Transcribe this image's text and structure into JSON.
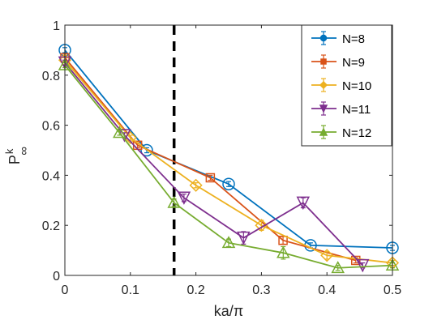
{
  "chart_data": {
    "type": "line",
    "title": "",
    "xlabel": "ka/π",
    "ylabel": "P",
    "ylabel_sup": "k",
    "ylabel_sub": "∞",
    "xlim": [
      0,
      0.5
    ],
    "ylim": [
      0,
      1
    ],
    "xticks": [
      0,
      0.1,
      0.2,
      0.3,
      0.4,
      0.5
    ],
    "xtick_labels": [
      "0",
      "0.1",
      "0.2",
      "0.3",
      "0.4",
      "0.5"
    ],
    "yticks": [
      0,
      0.2,
      0.4,
      0.6,
      0.8,
      1
    ],
    "ytick_labels": [
      "0",
      "0.2",
      "0.4",
      "0.6",
      "0.8",
      "1"
    ],
    "grid": false,
    "legend_position": "top-right",
    "vline": {
      "x": 0.1667,
      "style": "dashed",
      "color": "#000000"
    },
    "series": [
      {
        "name": "N=8",
        "color": "#0072BD",
        "marker": "circle",
        "x": [
          0,
          0.125,
          0.25,
          0.375,
          0.5
        ],
        "y": [
          0.9,
          0.5,
          0.365,
          0.12,
          0.11
        ],
        "err": [
          0.01,
          0.01,
          0.01,
          0.01,
          0.01
        ]
      },
      {
        "name": "N=9",
        "color": "#D95319",
        "marker": "square",
        "x": [
          0,
          0.111,
          0.222,
          0.333,
          0.444
        ],
        "y": [
          0.87,
          0.52,
          0.39,
          0.14,
          0.06
        ],
        "err": [
          0.01,
          0.01,
          0.01,
          0.015,
          0.01
        ]
      },
      {
        "name": "N=10",
        "color": "#EDB120",
        "marker": "diamond",
        "x": [
          0,
          0.1,
          0.2,
          0.3,
          0.4,
          0.5
        ],
        "y": [
          0.86,
          0.55,
          0.36,
          0.2,
          0.08,
          0.05
        ],
        "err": [
          0.01,
          0.01,
          0.01,
          0.02,
          0.015,
          0.01
        ]
      },
      {
        "name": "N=11",
        "color": "#7E2F8E",
        "marker": "triangle-down",
        "x": [
          0,
          0.0909,
          0.1818,
          0.2727,
          0.3636,
          0.4545
        ],
        "y": [
          0.85,
          0.56,
          0.31,
          0.15,
          0.29,
          0.04
        ],
        "err": [
          0.01,
          0.01,
          0.015,
          0.025,
          0.02,
          0.01
        ]
      },
      {
        "name": "N=12",
        "color": "#77AC30",
        "marker": "triangle-up",
        "x": [
          0,
          0.0833,
          0.1667,
          0.25,
          0.3333,
          0.4167,
          0.5
        ],
        "y": [
          0.84,
          0.57,
          0.29,
          0.13,
          0.09,
          0.03,
          0.04
        ],
        "err": [
          0.01,
          0.01,
          0.015,
          0.015,
          0.025,
          0.01,
          0.01
        ]
      }
    ]
  }
}
